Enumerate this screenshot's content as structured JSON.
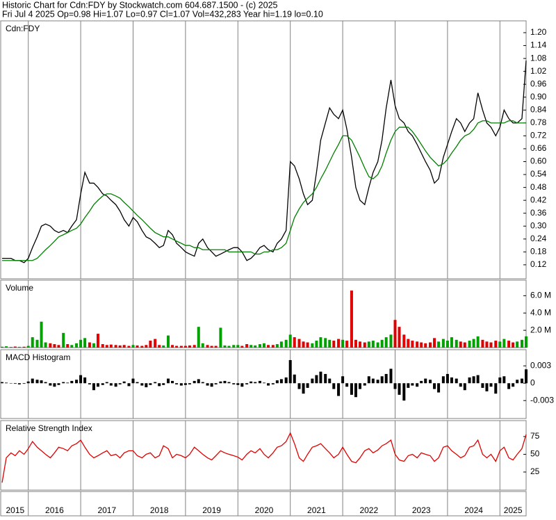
{
  "header": {
    "line1": "Historic Chart for Cdn:FDY by Stockwatch.com 604.687.1500 - (c) 2025",
    "line2": "Fri Jul  4 2025  Op=0.98  Hi=1.07  Lo=0.97  Cl=1.07  Vol=432,283  Year hi=1.19  lo=0.10"
  },
  "chart_data": [
    {
      "type": "line",
      "title": "Cdn:FDY",
      "x": [
        2015.5,
        2015.58,
        2015.67,
        2015.75,
        2015.83,
        2015.92,
        2016,
        2016.08,
        2016.17,
        2016.25,
        2016.33,
        2016.42,
        2016.5,
        2016.58,
        2016.67,
        2016.75,
        2016.83,
        2016.92,
        2017,
        2017.08,
        2017.17,
        2017.25,
        2017.33,
        2017.42,
        2017.5,
        2017.58,
        2017.67,
        2017.75,
        2017.83,
        2017.92,
        2018,
        2018.08,
        2018.17,
        2018.25,
        2018.33,
        2018.42,
        2018.5,
        2018.58,
        2018.67,
        2018.75,
        2018.83,
        2018.92,
        2019,
        2019.08,
        2019.17,
        2019.25,
        2019.33,
        2019.42,
        2019.5,
        2019.58,
        2019.67,
        2019.75,
        2019.83,
        2019.92,
        2020,
        2020.08,
        2020.17,
        2020.25,
        2020.33,
        2020.42,
        2020.5,
        2020.58,
        2020.67,
        2020.75,
        2020.83,
        2020.92,
        2021,
        2021.08,
        2021.17,
        2021.25,
        2021.33,
        2021.42,
        2021.5,
        2021.58,
        2021.67,
        2021.75,
        2021.83,
        2021.92,
        2022,
        2022.08,
        2022.17,
        2022.25,
        2022.33,
        2022.42,
        2022.5,
        2022.58,
        2022.67,
        2022.75,
        2022.83,
        2022.92,
        2023,
        2023.08,
        2023.17,
        2023.25,
        2023.33,
        2023.42,
        2023.5,
        2023.58,
        2023.67,
        2023.75,
        2023.83,
        2023.92,
        2024,
        2024.08,
        2024.17,
        2024.25,
        2024.33,
        2024.42,
        2024.5,
        2024.58,
        2024.67,
        2024.75,
        2024.83,
        2024.92,
        2025,
        2025.08,
        2025.17,
        2025.25,
        2025.33,
        2025.42,
        2025.5
      ],
      "xlim": [
        2015.5,
        2025.5
      ],
      "xticks": [
        2015,
        2016,
        2017,
        2018,
        2019,
        2020,
        2021,
        2022,
        2023,
        2024,
        2025
      ],
      "ylim": [
        0.055,
        1.255
      ],
      "yticks": [
        0.12,
        0.18,
        0.24,
        {
          "value": 0.3,
          "label": "0.30"
        },
        0.36,
        0.42,
        0.48,
        0.54,
        {
          "value": 0.6,
          "label": "0.60"
        },
        0.66,
        0.72,
        0.78,
        0.84,
        {
          "value": 0.9,
          "label": "0.90"
        },
        0.96,
        1.02,
        1.08,
        1.14,
        {
          "value": 1.2,
          "label": "1.20"
        }
      ],
      "series": [
        {
          "color": "#000000",
          "values": [
            0.15,
            0.15,
            0.15,
            0.14,
            0.14,
            0.13,
            0.15,
            0.2,
            0.25,
            0.3,
            0.31,
            0.3,
            0.28,
            0.27,
            0.28,
            0.27,
            0.3,
            0.33,
            0.45,
            0.55,
            0.5,
            0.5,
            0.48,
            0.45,
            0.44,
            0.42,
            0.4,
            0.37,
            0.33,
            0.3,
            0.34,
            0.32,
            0.28,
            0.25,
            0.24,
            0.22,
            0.2,
            0.21,
            0.28,
            0.26,
            0.22,
            0.2,
            0.18,
            0.17,
            0.16,
            0.22,
            0.24,
            0.2,
            0.18,
            0.16,
            0.17,
            0.18,
            0.19,
            0.2,
            0.2,
            0.18,
            0.14,
            0.15,
            0.17,
            0.2,
            0.21,
            0.19,
            0.18,
            0.22,
            0.24,
            0.28,
            0.6,
            0.58,
            0.52,
            0.45,
            0.4,
            0.42,
            0.55,
            0.7,
            0.78,
            0.85,
            0.82,
            0.8,
            0.84,
            0.75,
            0.62,
            0.48,
            0.42,
            0.4,
            0.48,
            0.55,
            0.6,
            0.7,
            0.85,
            0.98,
            0.86,
            0.8,
            0.78,
            0.74,
            0.72,
            0.68,
            0.64,
            0.6,
            0.56,
            0.5,
            0.52,
            0.62,
            0.68,
            0.74,
            0.8,
            0.78,
            0.74,
            0.78,
            0.8,
            0.92,
            0.84,
            0.78,
            0.76,
            0.72,
            0.76,
            0.84,
            0.8,
            0.78,
            0.78,
            0.8,
            1.07
          ]
        },
        {
          "color": "#008000",
          "values": [
            0.14,
            0.14,
            0.14,
            0.14,
            0.14,
            0.14,
            0.14,
            0.14,
            0.15,
            0.17,
            0.19,
            0.21,
            0.23,
            0.25,
            0.26,
            0.27,
            0.28,
            0.29,
            0.31,
            0.34,
            0.37,
            0.4,
            0.42,
            0.44,
            0.45,
            0.45,
            0.44,
            0.43,
            0.41,
            0.39,
            0.37,
            0.35,
            0.33,
            0.31,
            0.29,
            0.27,
            0.26,
            0.25,
            0.25,
            0.24,
            0.23,
            0.22,
            0.21,
            0.21,
            0.2,
            0.2,
            0.19,
            0.19,
            0.19,
            0.19,
            0.19,
            0.19,
            0.18,
            0.18,
            0.18,
            0.18,
            0.18,
            0.18,
            0.17,
            0.17,
            0.18,
            0.18,
            0.19,
            0.19,
            0.2,
            0.22,
            0.28,
            0.34,
            0.38,
            0.41,
            0.43,
            0.45,
            0.48,
            0.52,
            0.56,
            0.6,
            0.64,
            0.68,
            0.72,
            0.72,
            0.7,
            0.66,
            0.62,
            0.57,
            0.53,
            0.52,
            0.54,
            0.58,
            0.64,
            0.7,
            0.74,
            0.76,
            0.76,
            0.76,
            0.74,
            0.71,
            0.68,
            0.65,
            0.62,
            0.6,
            0.58,
            0.59,
            0.61,
            0.64,
            0.67,
            0.7,
            0.72,
            0.73,
            0.75,
            0.78,
            0.79,
            0.79,
            0.78,
            0.78,
            0.78,
            0.78,
            0.79,
            0.79,
            0.78,
            0.78,
            0.78
          ]
        }
      ]
    },
    {
      "type": "bar",
      "title": "Volume",
      "up_color": "#00a000",
      "down_color": "#e00000",
      "ylim": [
        0,
        7800000
      ],
      "yticks": [
        {
          "value": 2000000,
          "label": "2.0 M"
        },
        {
          "value": 4000000,
          "label": "4.0 M"
        },
        {
          "value": 6000000,
          "label": "6.0 M"
        }
      ],
      "values": [
        100000,
        150000,
        80000,
        120000,
        90000,
        100000,
        200000,
        1200000,
        900000,
        3000000,
        600000,
        500000,
        400000,
        300000,
        1700000,
        400000,
        300000,
        500000,
        900000,
        1100000,
        600000,
        500000,
        1600000,
        400000,
        300000,
        350000,
        300000,
        250000,
        300000,
        200000,
        300000,
        250000,
        200000,
        300000,
        800000,
        1000000,
        300000,
        250000,
        1400000,
        300000,
        200000,
        200000,
        200000,
        250000,
        300000,
        2400000,
        500000,
        300000,
        200000,
        200000,
        2300000,
        250000,
        200000,
        300000,
        300000,
        200000,
        400000,
        300000,
        250000,
        400000,
        500000,
        300000,
        300000,
        400000,
        700000,
        900000,
        1500000,
        1200000,
        1000000,
        700000,
        600000,
        500000,
        800000,
        1200000,
        1100000,
        900000,
        800000,
        1000000,
        900000,
        800000,
        6600000,
        900000,
        700000,
        600000,
        700000,
        800000,
        600000,
        900000,
        1200000,
        1500000,
        3200000,
        2400000,
        1500000,
        1000000,
        800000,
        700000,
        600000,
        500000,
        600000,
        1100000,
        700000,
        1000000,
        800000,
        1200000,
        900000,
        700000,
        600000,
        800000,
        1000000,
        1300000,
        900000,
        700000,
        600000,
        800000,
        700000,
        1000000,
        800000,
        600000,
        700000,
        900000,
        1300000
      ]
    },
    {
      "type": "bar",
      "title": "MACD Histogram",
      "color": "#000000",
      "ylim": [
        -0.0061,
        0.0058
      ],
      "yticks": [
        -0.003,
        0,
        0.003
      ],
      "values": [
        0.0002,
        0.0001,
        0,
        -0.0001,
        -0.0002,
        -0.0001,
        0.0003,
        0.0008,
        0.0006,
        0.0005,
        0.0002,
        -0.0004,
        -0.0006,
        -0.0003,
        0.0002,
        0.0001,
        0.0004,
        0.0006,
        0.0014,
        0.001,
        -0.0002,
        -0.0012,
        -0.0006,
        -0.0003,
        0.0002,
        -0.0004,
        -0.0006,
        -0.0002,
        0.0003,
        -0.0005,
        0.0008,
        0.0002,
        -0.0004,
        -0.0007,
        -0.0003,
        0.0002,
        -0.0005,
        -0.0003,
        0.0008,
        0.0004,
        -0.0002,
        -0.0004,
        -0.0003,
        -0.0002,
        0.0004,
        0.0007,
        0.0002,
        -0.0004,
        -0.0006,
        -0.0002,
        0.0003,
        0.0004,
        0.0002,
        -0.0002,
        -0.0003,
        -0.0006,
        -0.0002,
        0.0003,
        0.0002,
        0.0004,
        0.0001,
        -0.0004,
        -0.0002,
        0.0005,
        0.0007,
        0.001,
        0.004,
        0.0015,
        -0.001,
        -0.0018,
        -0.0008,
        0.0008,
        0.0014,
        0.002,
        0.0016,
        0.0008,
        -0.001,
        -0.0022,
        0.0012,
        -0.0006,
        -0.002,
        -0.0024,
        -0.001,
        -0.0004,
        0.0012,
        0.0008,
        0.0006,
        0.0012,
        0.0016,
        0.0025,
        -0.001,
        -0.002,
        -0.003,
        -0.0008,
        -0.0004,
        -0.0006,
        0.0004,
        0.0008,
        0.0006,
        -0.001,
        -0.0016,
        0.0012,
        0.0016,
        0.001,
        0.0008,
        -0.0006,
        -0.0012,
        0.001,
        0.0012,
        0.0014,
        -0.0008,
        -0.0014,
        -0.0006,
        -0.0018,
        0.001,
        0.0012,
        -0.001,
        -0.0006,
        0.0006,
        0.0008,
        0.0024
      ]
    },
    {
      "type": "line",
      "title": "Relative Strength Index",
      "ylim": [
        -0.5,
        97.5
      ],
      "yticks": [
        25,
        50,
        75
      ],
      "series": [
        {
          "color": "#e00000",
          "values": [
            10,
            45,
            52,
            48,
            55,
            50,
            58,
            68,
            60,
            55,
            50,
            45,
            52,
            60,
            58,
            55,
            62,
            65,
            70,
            60,
            50,
            45,
            48,
            52,
            55,
            48,
            50,
            45,
            52,
            55,
            55,
            48,
            45,
            50,
            52,
            45,
            48,
            62,
            58,
            45,
            50,
            48,
            45,
            50,
            60,
            55,
            50,
            45,
            42,
            48,
            55,
            52,
            50,
            48,
            46,
            42,
            50,
            55,
            52,
            58,
            50,
            45,
            52,
            60,
            62,
            68,
            80,
            65,
            45,
            40,
            50,
            60,
            62,
            65,
            58,
            52,
            45,
            50,
            60,
            50,
            40,
            38,
            45,
            55,
            58,
            52,
            56,
            62,
            65,
            70,
            50,
            42,
            40,
            48,
            50,
            45,
            52,
            50,
            48,
            40,
            45,
            60,
            62,
            55,
            50,
            45,
            48,
            60,
            62,
            70,
            50,
            45,
            50,
            40,
            55,
            60,
            45,
            42,
            50,
            58,
            78
          ]
        }
      ]
    }
  ]
}
